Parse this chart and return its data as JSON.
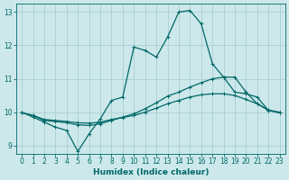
{
  "xlabel": "Humidex (Indice chaleur)",
  "bg_color": "#cce8ea",
  "grid_color": "#aacfd2",
  "line_color": "#006868",
  "xlim": [
    -0.5,
    23.5
  ],
  "ylim": [
    8.75,
    13.25
  ],
  "xticks": [
    0,
    1,
    2,
    3,
    4,
    5,
    6,
    7,
    8,
    9,
    10,
    11,
    12,
    13,
    14,
    15,
    16,
    17,
    18,
    19,
    20,
    21,
    22,
    23
  ],
  "yticks": [
    9,
    10,
    11,
    12,
    13
  ],
  "line1_y": [
    10.0,
    9.85,
    9.7,
    9.55,
    9.45,
    8.82,
    9.35,
    9.8,
    10.35,
    10.45,
    11.95,
    11.85,
    11.65,
    12.25,
    13.0,
    13.05,
    12.65,
    11.45,
    11.05,
    10.6,
    10.55,
    10.45,
    10.05,
    10.0
  ],
  "line2_y": [
    9.98,
    9.9,
    9.75,
    9.72,
    9.68,
    9.62,
    9.6,
    9.65,
    9.75,
    9.85,
    9.95,
    10.1,
    10.28,
    10.48,
    10.6,
    10.75,
    10.88,
    11.0,
    11.05,
    11.05,
    10.6,
    10.25,
    10.05,
    9.98
  ],
  "line3_y": [
    9.98,
    9.9,
    9.78,
    9.75,
    9.72,
    9.68,
    9.67,
    9.7,
    9.78,
    9.84,
    9.9,
    10.0,
    10.12,
    10.25,
    10.35,
    10.45,
    10.52,
    10.55,
    10.55,
    10.5,
    10.38,
    10.25,
    10.07,
    9.98
  ],
  "line_width": 0.9,
  "marker_size": 2.5
}
